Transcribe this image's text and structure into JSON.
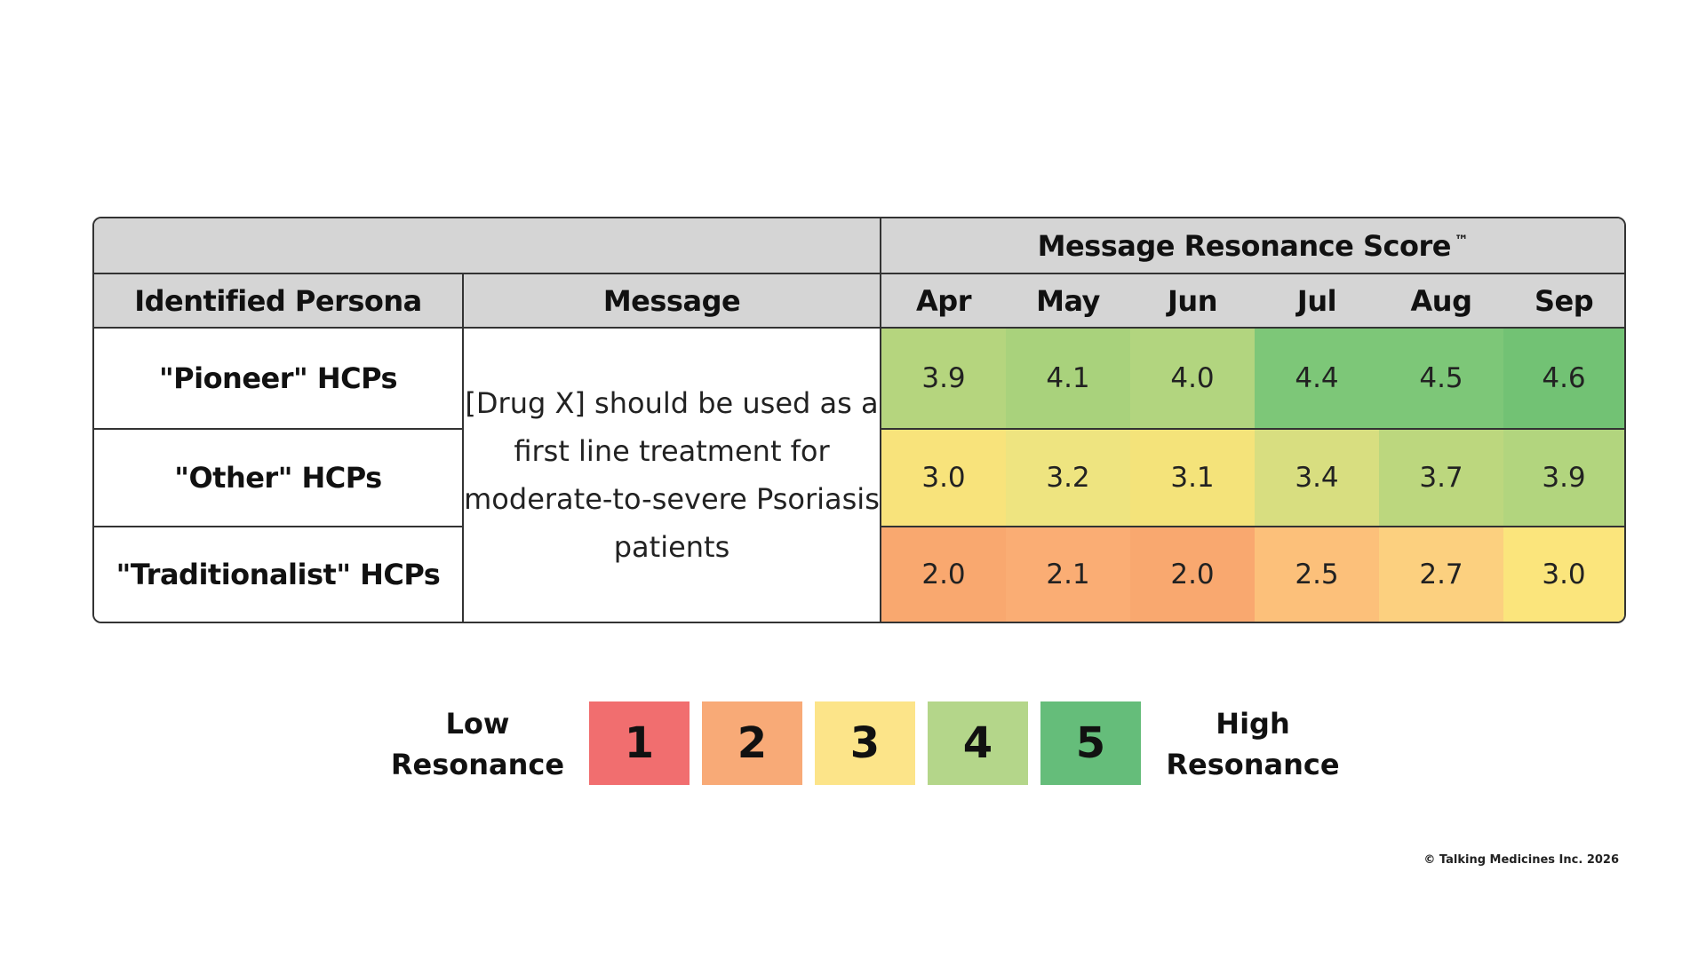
{
  "header": {
    "group_title": "Message Resonance Score",
    "trademark": "™",
    "persona_column": "Identified Persona",
    "message_column": "Message"
  },
  "message_text": "[Drug X] should be used as a first line treatment for moderate-to-severe Psoriasis patients",
  "chart_data": {
    "type": "heatmap",
    "title": "Message Resonance Score ™",
    "x": [
      "Apr",
      "May",
      "Jun",
      "Jul",
      "Aug",
      "Sep"
    ],
    "y": [
      "\"Pioneer\" HCPs",
      "\"Other\" HCPs",
      "\"Traditionalist\" HCPs"
    ],
    "values": [
      [
        "3.9",
        "4.1",
        "4.0",
        "4.4",
        "4.5",
        "4.6"
      ],
      [
        "3.0",
        "3.2",
        "3.1",
        "3.4",
        "3.7",
        "3.9"
      ],
      [
        "2.0",
        "2.1",
        "2.0",
        "2.5",
        "2.7",
        "3.0"
      ]
    ],
    "cell_colors": [
      [
        "#b5d57e",
        "#a9d27c",
        "#b2d57f",
        "#7dc778",
        "#7dc778",
        "#72c274"
      ],
      [
        "#f8e37b",
        "#eee480",
        "#f4e37a",
        "#d8de80",
        "#bcd77e",
        "#b2d57e"
      ],
      [
        "#f9a86f",
        "#faad74",
        "#f9a86f",
        "#fcc07a",
        "#fcd07f",
        "#fbe57c"
      ]
    ],
    "scale": {
      "min": 1,
      "max": 5,
      "low_label": "Low Resonance",
      "high_label": "High Resonance",
      "steps": [
        {
          "label": "1",
          "color": "#f16e6f"
        },
        {
          "label": "2",
          "color": "#f8aa77"
        },
        {
          "label": "3",
          "color": "#fce489"
        },
        {
          "label": "4",
          "color": "#b4d68a"
        },
        {
          "label": "5",
          "color": "#65bd7a"
        }
      ]
    }
  },
  "legend": {
    "low_line1": "Low",
    "low_line2": "Resonance",
    "high_line1": "High",
    "high_line2": "Resonance"
  },
  "footer": {
    "copyright": "© Talking Medicines Inc. 2026"
  }
}
